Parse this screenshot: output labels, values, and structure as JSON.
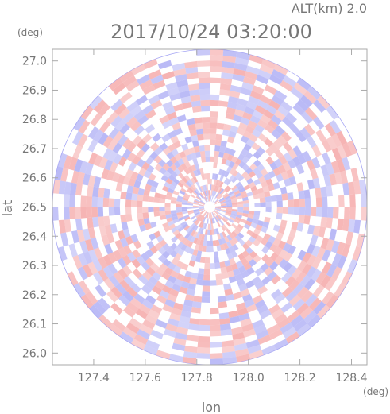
{
  "chart_data": {
    "type": "heatmap",
    "title": "2017/10/24 03:20:00",
    "altitude_label": "ALT(km) 2.0",
    "xlabel": "lon",
    "ylabel": "lat",
    "x_unit": "(deg)",
    "y_unit": "(deg)",
    "xlim": [
      127.24,
      128.46
    ],
    "ylim": [
      25.96,
      27.04
    ],
    "x_ticks": [
      "127.4",
      "127.6",
      "127.8",
      "128.0",
      "128.2",
      "128.4"
    ],
    "y_ticks": [
      "26.0",
      "26.1",
      "26.2",
      "26.3",
      "26.4",
      "26.5",
      "26.6",
      "26.7",
      "26.8",
      "26.9",
      "27.0"
    ],
    "domain": {
      "shape": "circle",
      "center_lon": 127.85,
      "center_lat": 26.5,
      "radius_lon_deg": 0.61,
      "radius_lat_deg": 0.54
    },
    "colors": {
      "positive": "#f4a0a0",
      "negative": "#a8a8f4",
      "neutral": "#ffffff",
      "frame": "#aaaaaa",
      "text": "#777777"
    }
  }
}
